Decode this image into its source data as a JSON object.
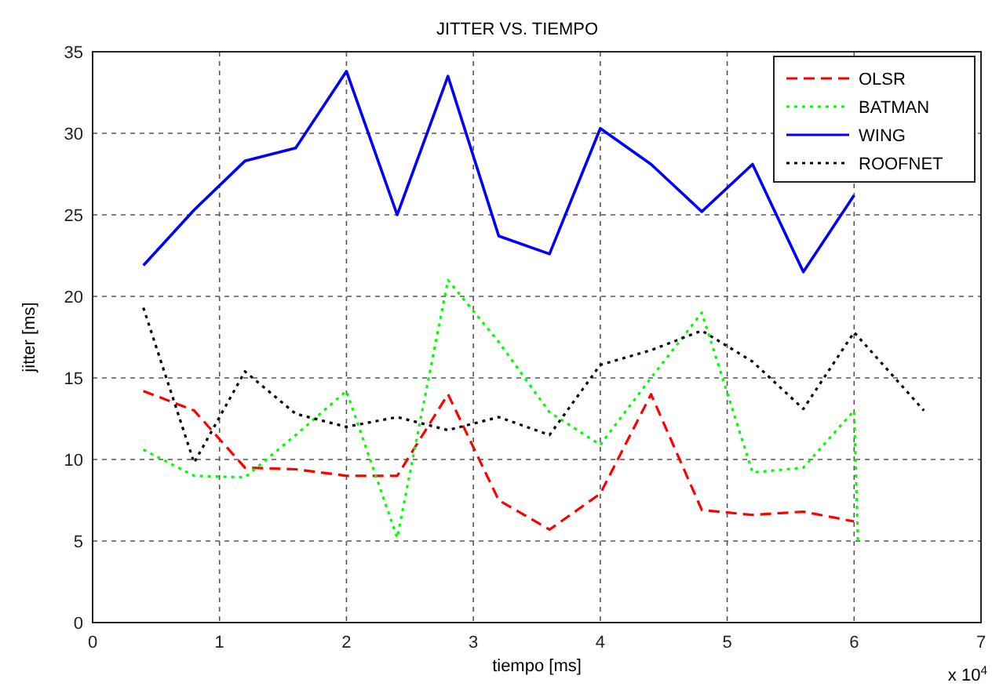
{
  "chart_data": {
    "type": "line",
    "title": "JITTER VS. TIEMPO",
    "xlabel": "tiempo [ms]",
    "ylabel": "jitter [ms]",
    "annotations": [
      "x 10$^{4}$"
    ],
    "xlim": [
      0,
      7
    ],
    "xticks": [
      0,
      1,
      2,
      3,
      4,
      5,
      6,
      7
    ],
    "ylim": [
      0,
      35
    ],
    "yticks": [
      0,
      5,
      10,
      15,
      20,
      25,
      30,
      35
    ],
    "grid": true,
    "legend": "top right",
    "series": [
      {
        "name": "OLSR",
        "color": "#ff0000",
        "line_style": "dashed",
        "x": [
          0.4,
          0.8,
          1.2,
          1.6,
          2.0,
          2.4,
          2.8,
          3.2,
          3.6,
          4.0,
          4.4,
          4.8,
          5.2,
          5.6,
          6.0
        ],
        "values": [
          14.2,
          13,
          9.5,
          9.4,
          9,
          9,
          14,
          7.5,
          5.7,
          7.9,
          14,
          6.9,
          6.6,
          6.8,
          6.2
        ]
      },
      {
        "name": "BATMAN",
        "color": "#00ff00",
        "line_style": "dotted",
        "x": [
          0.4,
          0.8,
          1.2,
          1.6,
          2.0,
          2.4,
          2.8,
          3.2,
          3.6,
          4.0,
          4.4,
          4.8,
          5.2,
          5.6,
          6.0,
          6.03
        ],
        "values": [
          10.6,
          9,
          8.9,
          11.5,
          14.2,
          5.2,
          21,
          17.2,
          12.9,
          10.9,
          15,
          19,
          9.2,
          9.5,
          13,
          5
        ]
      },
      {
        "name": "WING",
        "color": "#0000ff",
        "line_style": "solid",
        "x": [
          0.4,
          0.8,
          1.2,
          1.6,
          2.0,
          2.4,
          2.8,
          3.2,
          3.6,
          4.0,
          4.4,
          4.8,
          5.2,
          5.6,
          6.0
        ],
        "values": [
          21.9,
          25.3,
          28.3,
          29.1,
          33.8,
          25,
          33.5,
          23.7,
          22.6,
          30.3,
          28.1,
          25.2,
          28.1,
          21.5,
          26.2
        ]
      },
      {
        "name": "ROOFNET",
        "color": "#000000",
        "line_style": "dotted",
        "x": [
          0.4,
          0.8,
          1.2,
          1.6,
          2.0,
          2.4,
          2.8,
          3.2,
          3.6,
          4.0,
          4.4,
          4.8,
          5.2,
          5.6,
          6.0,
          6.55
        ],
        "values": [
          19.3,
          9.8,
          15.4,
          12.8,
          12,
          12.6,
          11.8,
          12.6,
          11.5,
          15.8,
          16.7,
          17.9,
          16,
          13.1,
          17.8,
          13
        ]
      }
    ]
  }
}
